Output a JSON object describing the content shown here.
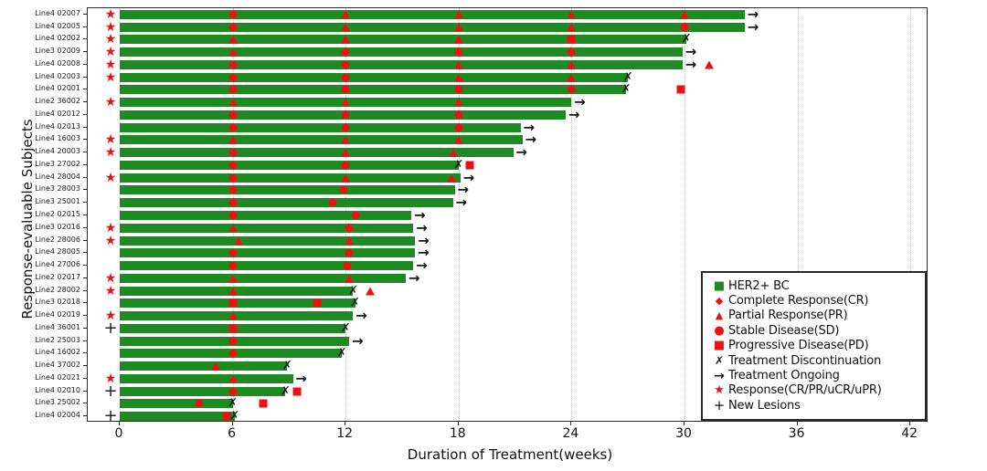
{
  "chart_data": {
    "type": "bar",
    "variant": "swimmer-plot",
    "title": "",
    "xlabel": "Duration of Treatment(weeks)",
    "ylabel": "Response-evaluable Subjects",
    "xticks": [
      0,
      6,
      12,
      18,
      24,
      30,
      36,
      42
    ],
    "xlim": [
      -1.7,
      43.7
    ],
    "grid": "vertical-dotted",
    "legend_position": "bottom-right",
    "colors": {
      "bar_green": "#1e8b22",
      "marker_red": "#ee1111",
      "marker_black": "#161616",
      "gridline": "#c9c9c9",
      "spine": "#2a2a2a"
    },
    "marker_legend": {
      "diamond": "CR",
      "triangle": "PR",
      "circle": "SD",
      "square": "PD",
      "x": "Treatment Discontinuation",
      "arrow": "Treatment Ongoing",
      "star": "Response(CR/PR/uCR/uPR)",
      "plus": "New Lesions"
    },
    "legend": {
      "items": [
        {
          "icon": "her2-square",
          "label": "HER2+ BC"
        },
        {
          "icon": "cr-diamond",
          "label": "Complete Response(CR)"
        },
        {
          "icon": "pr-triangle",
          "label": "Partial Response(PR)"
        },
        {
          "icon": "sd-circle",
          "label": "Stable Disease(SD)"
        },
        {
          "icon": "pd-square",
          "label": "Progressive Disease(PD)"
        },
        {
          "icon": "discontinuation-x",
          "label": "Treatment Discontinuation"
        },
        {
          "icon": "ongoing-arrow",
          "label": "Treatment Ongoing"
        },
        {
          "icon": "response-star",
          "label": "Response(CR/PR/uCR/uPR)"
        },
        {
          "icon": "new-lesions-plus",
          "label": "New Lesions"
        }
      ]
    },
    "subjects": [
      {
        "label": "Line4 02007",
        "pre": "response",
        "duration_weeks": 33.2,
        "end": "ongoing",
        "assessments": [
          {
            "week": 6,
            "result": "SD"
          },
          {
            "week": 12,
            "result": "PR"
          },
          {
            "week": 18,
            "result": "PR"
          },
          {
            "week": 24,
            "result": "PR"
          },
          {
            "week": 30,
            "result": "PR"
          }
        ]
      },
      {
        "label": "Line4 02005",
        "pre": "response",
        "duration_weeks": 33.2,
        "end": "ongoing",
        "assessments": [
          {
            "week": 6,
            "result": "SD"
          },
          {
            "week": 12,
            "result": "PR"
          },
          {
            "week": 18,
            "result": "PR"
          },
          {
            "week": 24,
            "result": "PR"
          },
          {
            "week": 30,
            "result": "SD"
          }
        ]
      },
      {
        "label": "Line4 02002",
        "pre": "response",
        "duration_weeks": 30.1,
        "end": "discontinued",
        "assessments": [
          {
            "week": 6,
            "result": "PR"
          },
          {
            "week": 12,
            "result": "PR"
          },
          {
            "week": 18,
            "result": "PR"
          },
          {
            "week": 24,
            "result": "PD"
          }
        ]
      },
      {
        "label": "Line3 02009",
        "pre": "response",
        "duration_weeks": 29.9,
        "end": "ongoing",
        "assessments": [
          {
            "week": 6,
            "result": "PR"
          },
          {
            "week": 12,
            "result": "CR"
          },
          {
            "week": 18,
            "result": "CR"
          },
          {
            "week": 24,
            "result": "CR"
          }
        ]
      },
      {
        "label": "Line4 02008",
        "pre": "response",
        "duration_weeks": 29.9,
        "end": "ongoing",
        "assessments": [
          {
            "week": 6,
            "result": "SD"
          },
          {
            "week": 12,
            "result": "SD"
          },
          {
            "week": 18,
            "result": "PR"
          },
          {
            "week": 24,
            "result": "PR"
          },
          {
            "week": 31.3,
            "result": "PR"
          }
        ]
      },
      {
        "label": "Line4 02003",
        "pre": "response",
        "duration_weeks": 27.0,
        "end": "discontinued",
        "assessments": [
          {
            "week": 6,
            "result": "SD"
          },
          {
            "week": 12,
            "result": "SD"
          },
          {
            "week": 18,
            "result": "PR"
          },
          {
            "week": 24,
            "result": "PR"
          }
        ]
      },
      {
        "label": "Line4 02001",
        "pre": null,
        "duration_weeks": 26.9,
        "end": "discontinued",
        "assessments": [
          {
            "week": 6,
            "result": "SD"
          },
          {
            "week": 12,
            "result": "SD"
          },
          {
            "week": 18,
            "result": "SD"
          },
          {
            "week": 24,
            "result": "SD"
          },
          {
            "week": 29.8,
            "result": "PD"
          }
        ]
      },
      {
        "label": "Line2 36002",
        "pre": "response",
        "duration_weeks": 24.0,
        "end": "ongoing",
        "assessments": [
          {
            "week": 6,
            "result": "PR"
          },
          {
            "week": 12,
            "result": "PR"
          },
          {
            "week": 18,
            "result": "PR"
          }
        ]
      },
      {
        "label": "Line4 02012",
        "pre": null,
        "duration_weeks": 23.7,
        "end": "ongoing",
        "assessments": [
          {
            "week": 6,
            "result": "SD"
          },
          {
            "week": 12,
            "result": "SD"
          },
          {
            "week": 18,
            "result": "SD"
          }
        ]
      },
      {
        "label": "Line4 02013",
        "pre": null,
        "duration_weeks": 21.3,
        "end": "ongoing",
        "assessments": [
          {
            "week": 6,
            "result": "SD"
          },
          {
            "week": 12,
            "result": "SD"
          },
          {
            "week": 18,
            "result": "SD"
          }
        ]
      },
      {
        "label": "Line4 16003",
        "pre": "response",
        "duration_weeks": 21.4,
        "end": "ongoing",
        "assessments": [
          {
            "week": 6,
            "result": "PR"
          },
          {
            "week": 12,
            "result": "PR"
          },
          {
            "week": 18,
            "result": "PR"
          }
        ]
      },
      {
        "label": "Line4 20003",
        "pre": "response",
        "duration_weeks": 20.9,
        "end": "ongoing",
        "assessments": [
          {
            "week": 6,
            "result": "SD"
          },
          {
            "week": 12,
            "result": "PR"
          },
          {
            "week": 17.7,
            "result": "PR"
          }
        ]
      },
      {
        "label": "Line3 27002",
        "pre": null,
        "duration_weeks": 18.0,
        "end": "discontinued",
        "assessments": [
          {
            "week": 6,
            "result": "SD"
          },
          {
            "week": 12,
            "result": "SD"
          },
          {
            "week": 18.6,
            "result": "PD"
          }
        ]
      },
      {
        "label": "Line4 28004",
        "pre": "response",
        "duration_weeks": 18.1,
        "end": "ongoing",
        "assessments": [
          {
            "week": 6,
            "result": "SD"
          },
          {
            "week": 12,
            "result": "PR"
          },
          {
            "week": 17.6,
            "result": "PR"
          }
        ]
      },
      {
        "label": "Line3 28003",
        "pre": null,
        "duration_weeks": 17.8,
        "end": "ongoing",
        "assessments": [
          {
            "week": 6,
            "result": "SD"
          },
          {
            "week": 11.9,
            "result": "SD"
          }
        ]
      },
      {
        "label": "Line3 25001",
        "pre": null,
        "duration_weeks": 17.7,
        "end": "ongoing",
        "assessments": [
          {
            "week": 6,
            "result": "SD"
          },
          {
            "week": 11.3,
            "result": "SD"
          }
        ]
      },
      {
        "label": "Line2 02015",
        "pre": null,
        "duration_weeks": 15.5,
        "end": "ongoing",
        "assessments": [
          {
            "week": 6,
            "result": "SD"
          },
          {
            "week": 12.5,
            "result": "SD"
          }
        ]
      },
      {
        "label": "Line3 02016",
        "pre": "response",
        "duration_weeks": 15.6,
        "end": "ongoing",
        "assessments": [
          {
            "week": 6,
            "result": "PR"
          },
          {
            "week": 12.2,
            "result": "CR"
          }
        ]
      },
      {
        "label": "Line2 28006",
        "pre": "response",
        "duration_weeks": 15.7,
        "end": "ongoing",
        "assessments": [
          {
            "week": 6.3,
            "result": "PR"
          },
          {
            "week": 12.2,
            "result": "PR"
          }
        ]
      },
      {
        "label": "Line4 28005",
        "pre": null,
        "duration_weeks": 15.7,
        "end": "ongoing",
        "assessments": [
          {
            "week": 6,
            "result": "SD"
          },
          {
            "week": 12.2,
            "result": "SD"
          }
        ]
      },
      {
        "label": "Line4 27006",
        "pre": null,
        "duration_weeks": 15.6,
        "end": "ongoing",
        "assessments": [
          {
            "week": 6,
            "result": "SD"
          },
          {
            "week": 12.1,
            "result": "SD"
          }
        ]
      },
      {
        "label": "Line2 02017",
        "pre": "response",
        "duration_weeks": 15.2,
        "end": "ongoing",
        "assessments": [
          {
            "week": 6,
            "result": "PR"
          },
          {
            "week": 12.2,
            "result": "PR"
          }
        ]
      },
      {
        "label": "Line2 28002",
        "pre": "response",
        "duration_weeks": 12.4,
        "end": "discontinued",
        "assessments": [
          {
            "week": 6,
            "result": "PR"
          },
          {
            "week": 13.3,
            "result": "PR"
          }
        ]
      },
      {
        "label": "Line3 02018",
        "pre": null,
        "duration_weeks": 12.5,
        "end": "discontinued",
        "assessments": [
          {
            "week": 6,
            "result": "PD"
          },
          {
            "week": 10.5,
            "result": "PD"
          }
        ]
      },
      {
        "label": "Line4 02019",
        "pre": "response",
        "duration_weeks": 12.4,
        "end": "ongoing",
        "assessments": [
          {
            "week": 6,
            "result": "PR"
          }
        ]
      },
      {
        "label": "Line4 36001",
        "pre": "new-lesions",
        "duration_weeks": 12.0,
        "end": "discontinued",
        "assessments": [
          {
            "week": 6,
            "result": "PD"
          }
        ]
      },
      {
        "label": "Line2 25003",
        "pre": null,
        "duration_weeks": 12.2,
        "end": "ongoing",
        "assessments": [
          {
            "week": 6,
            "result": "SD"
          }
        ]
      },
      {
        "label": "Line4 16002",
        "pre": null,
        "duration_weeks": 11.8,
        "end": "discontinued",
        "assessments": [
          {
            "week": 6,
            "result": "SD"
          }
        ]
      },
      {
        "label": "Line4 37002",
        "pre": null,
        "duration_weeks": 8.9,
        "end": "discontinued",
        "assessments": [
          {
            "week": 5.1,
            "result": "PR"
          }
        ]
      },
      {
        "label": "Line4 02021",
        "pre": "response",
        "duration_weeks": 9.2,
        "end": "ongoing",
        "assessments": [
          {
            "week": 6,
            "result": "PR"
          }
        ]
      },
      {
        "label": "Line4 02010",
        "pre": "new-lesions",
        "duration_weeks": 8.8,
        "end": "discontinued",
        "assessments": [
          {
            "week": 6,
            "result": "SD"
          },
          {
            "week": 9.4,
            "result": "PD"
          }
        ]
      },
      {
        "label": "Line3 25002",
        "pre": null,
        "duration_weeks": 6.0,
        "end": "discontinued",
        "assessments": [
          {
            "week": 4.2,
            "result": "SD"
          },
          {
            "week": 7.6,
            "result": "PD"
          }
        ]
      },
      {
        "label": "Line4 02004",
        "pre": "new-lesions",
        "duration_weeks": 6.1,
        "end": "discontinued",
        "assessments": [
          {
            "week": 5.7,
            "result": "PD"
          }
        ]
      }
    ]
  }
}
